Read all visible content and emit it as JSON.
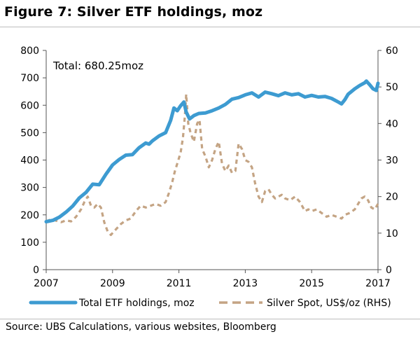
{
  "title": "Figure 7: Silver ETF holdings, moz",
  "source": "Source:  UBS Calculations, various websites, Bloomberg",
  "colors": {
    "etf": "#3d9bd1",
    "spot": "#c4a484",
    "axis": "#555555"
  },
  "chart_data": {
    "type": "line",
    "annotation": "Total: 680.25moz",
    "x_ticks": [
      "2007",
      "2009",
      "2011",
      "2013",
      "2015",
      "2017"
    ],
    "xlim": [
      2007,
      2017
    ],
    "y_left": {
      "label": "",
      "lim": [
        0,
        800
      ],
      "ticks": [
        "0",
        "100",
        "200",
        "300",
        "400",
        "500",
        "600",
        "700",
        "800"
      ]
    },
    "y_right": {
      "label": "",
      "lim": [
        0,
        60
      ],
      "ticks": [
        "0",
        "10",
        "20",
        "30",
        "40",
        "50",
        "60"
      ]
    },
    "legend_position": "bottom",
    "series": [
      {
        "name": "Total ETF holdings, moz",
        "axis": "left",
        "style": "solid",
        "points": [
          [
            2007.0,
            175
          ],
          [
            2007.2,
            180
          ],
          [
            2007.4,
            192
          ],
          [
            2007.6,
            210
          ],
          [
            2007.8,
            232
          ],
          [
            2008.0,
            262
          ],
          [
            2008.2,
            282
          ],
          [
            2008.4,
            312
          ],
          [
            2008.6,
            310
          ],
          [
            2008.8,
            348
          ],
          [
            2009.0,
            382
          ],
          [
            2009.2,
            402
          ],
          [
            2009.4,
            418
          ],
          [
            2009.6,
            420
          ],
          [
            2009.8,
            445
          ],
          [
            2010.0,
            462
          ],
          [
            2010.1,
            458
          ],
          [
            2010.2,
            470
          ],
          [
            2010.4,
            488
          ],
          [
            2010.6,
            500
          ],
          [
            2010.75,
            545
          ],
          [
            2010.85,
            590
          ],
          [
            2010.95,
            580
          ],
          [
            2011.05,
            598
          ],
          [
            2011.15,
            612
          ],
          [
            2011.22,
            575
          ],
          [
            2011.32,
            550
          ],
          [
            2011.45,
            562
          ],
          [
            2011.6,
            570
          ],
          [
            2011.8,
            572
          ],
          [
            2012.0,
            580
          ],
          [
            2012.2,
            590
          ],
          [
            2012.4,
            603
          ],
          [
            2012.6,
            622
          ],
          [
            2012.8,
            628
          ],
          [
            2013.0,
            638
          ],
          [
            2013.2,
            645
          ],
          [
            2013.4,
            630
          ],
          [
            2013.6,
            648
          ],
          [
            2013.8,
            642
          ],
          [
            2014.0,
            635
          ],
          [
            2014.2,
            645
          ],
          [
            2014.4,
            638
          ],
          [
            2014.6,
            642
          ],
          [
            2014.8,
            630
          ],
          [
            2015.0,
            636
          ],
          [
            2015.2,
            630
          ],
          [
            2015.4,
            632
          ],
          [
            2015.6,
            625
          ],
          [
            2015.8,
            612
          ],
          [
            2015.9,
            605
          ],
          [
            2016.0,
            620
          ],
          [
            2016.1,
            640
          ],
          [
            2016.3,
            660
          ],
          [
            2016.45,
            672
          ],
          [
            2016.6,
            682
          ],
          [
            2016.65,
            688
          ],
          [
            2016.75,
            675
          ],
          [
            2016.85,
            660
          ],
          [
            2016.95,
            654
          ],
          [
            2017.0,
            680
          ]
        ]
      },
      {
        "name": "Silver Spot, US$/oz (RHS)",
        "axis": "right",
        "style": "dashed",
        "points": [
          [
            2007.0,
            13.2
          ],
          [
            2007.15,
            13.8
          ],
          [
            2007.3,
            13.4
          ],
          [
            2007.45,
            13.0
          ],
          [
            2007.6,
            13.5
          ],
          [
            2007.75,
            13.2
          ],
          [
            2007.9,
            14.5
          ],
          [
            2008.05,
            16.5
          ],
          [
            2008.15,
            18.5
          ],
          [
            2008.25,
            20.0
          ],
          [
            2008.35,
            17.5
          ],
          [
            2008.45,
            17.0
          ],
          [
            2008.55,
            18.0
          ],
          [
            2008.65,
            17.0
          ],
          [
            2008.75,
            13.0
          ],
          [
            2008.85,
            10.5
          ],
          [
            2008.95,
            9.5
          ],
          [
            2009.1,
            11.0
          ],
          [
            2009.25,
            12.5
          ],
          [
            2009.4,
            13.5
          ],
          [
            2009.55,
            14.0
          ],
          [
            2009.7,
            16.0
          ],
          [
            2009.85,
            17.5
          ],
          [
            2010.0,
            17.0
          ],
          [
            2010.15,
            17.5
          ],
          [
            2010.3,
            18.0
          ],
          [
            2010.45,
            17.5
          ],
          [
            2010.6,
            18.5
          ],
          [
            2010.7,
            21.0
          ],
          [
            2010.8,
            24.0
          ],
          [
            2010.88,
            27.0
          ],
          [
            2010.95,
            29.0
          ],
          [
            2011.05,
            32.0
          ],
          [
            2011.12,
            36.0
          ],
          [
            2011.18,
            42.0
          ],
          [
            2011.22,
            48.0
          ],
          [
            2011.28,
            40.0
          ],
          [
            2011.35,
            37.5
          ],
          [
            2011.45,
            35.0
          ],
          [
            2011.55,
            40.0
          ],
          [
            2011.62,
            41.0
          ],
          [
            2011.7,
            33.0
          ],
          [
            2011.8,
            31.0
          ],
          [
            2011.9,
            28.0
          ],
          [
            2012.0,
            30.0
          ],
          [
            2012.1,
            33.0
          ],
          [
            2012.2,
            35.0
          ],
          [
            2012.3,
            29.0
          ],
          [
            2012.4,
            27.0
          ],
          [
            2012.5,
            28.5
          ],
          [
            2012.6,
            26.5
          ],
          [
            2012.7,
            27.0
          ],
          [
            2012.8,
            34.5
          ],
          [
            2012.9,
            33.0
          ],
          [
            2013.0,
            30.0
          ],
          [
            2013.1,
            29.5
          ],
          [
            2013.2,
            28.0
          ],
          [
            2013.3,
            23.5
          ],
          [
            2013.4,
            20.0
          ],
          [
            2013.5,
            18.5
          ],
          [
            2013.6,
            21.5
          ],
          [
            2013.7,
            22.0
          ],
          [
            2013.8,
            20.5
          ],
          [
            2013.9,
            19.5
          ],
          [
            2014.0,
            20.0
          ],
          [
            2014.1,
            20.5
          ],
          [
            2014.2,
            19.5
          ],
          [
            2014.35,
            19.0
          ],
          [
            2014.5,
            20.0
          ],
          [
            2014.65,
            18.5
          ],
          [
            2014.8,
            16.0
          ],
          [
            2014.9,
            16.5
          ],
          [
            2015.0,
            16.0
          ],
          [
            2015.15,
            16.5
          ],
          [
            2015.3,
            15.5
          ],
          [
            2015.45,
            14.5
          ],
          [
            2015.6,
            15.0
          ],
          [
            2015.75,
            14.5
          ],
          [
            2015.9,
            14.0
          ],
          [
            2016.0,
            15.0
          ],
          [
            2016.15,
            15.5
          ],
          [
            2016.3,
            16.5
          ],
          [
            2016.4,
            18.0
          ],
          [
            2016.5,
            19.5
          ],
          [
            2016.6,
            20.0
          ],
          [
            2016.7,
            19.0
          ],
          [
            2016.8,
            17.0
          ],
          [
            2016.9,
            16.5
          ],
          [
            2017.0,
            18.0
          ]
        ]
      }
    ]
  }
}
